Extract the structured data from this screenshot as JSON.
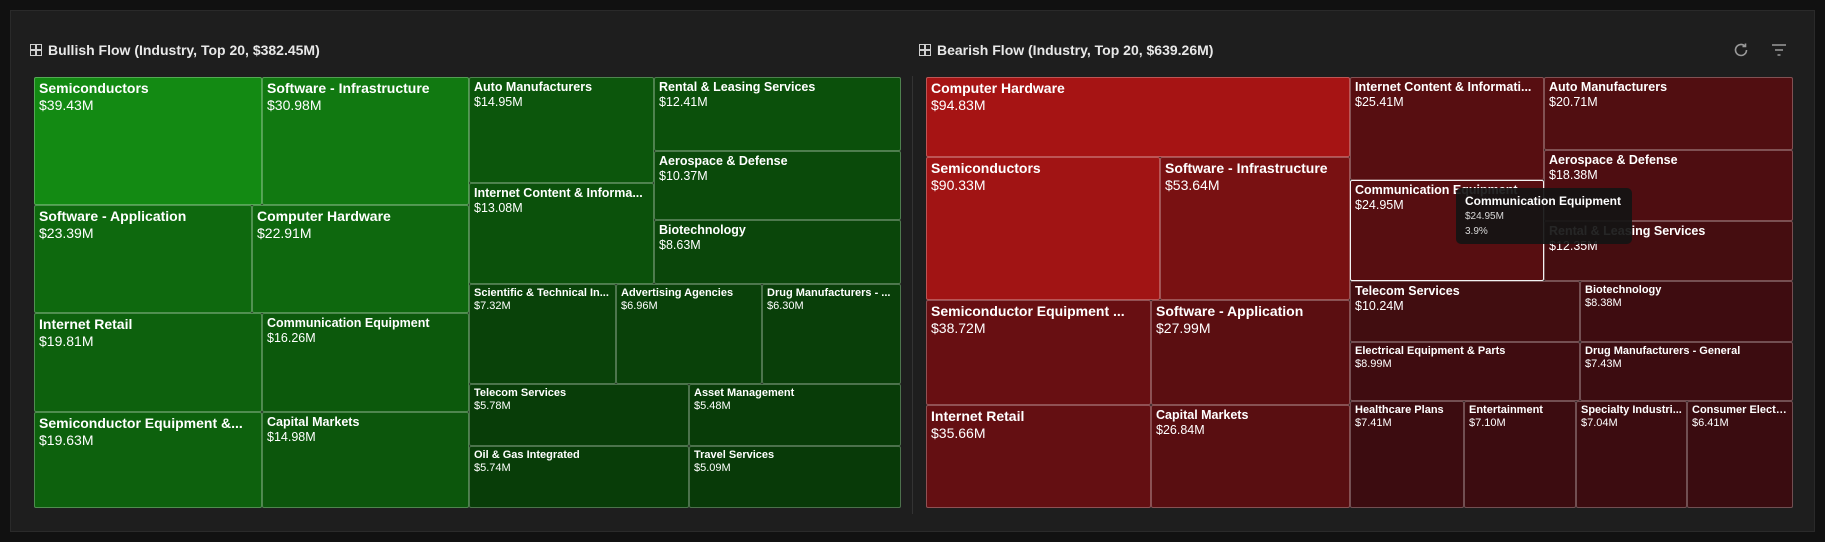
{
  "panels": {
    "bullish": {
      "title": "Bullish Flow (Industry, Top 20, $382.45M)"
    },
    "bearish": {
      "title": "Bearish Flow (Industry, Top 20, $639.26M)"
    }
  },
  "toolbar": {
    "refresh_icon": "refresh-icon",
    "filter_icon": "filter-icon"
  },
  "colors": {
    "bull_max": "#138a13",
    "bull_min": "#083a08",
    "bear_max": "#a61414",
    "bear_min": "#3a0c10"
  },
  "tooltip": {
    "title": "Communication Equipment",
    "value": "$24.95M",
    "pct": "3.9%"
  },
  "chart_data": [
    {
      "type": "treemap",
      "title": "Bullish Flow (Industry, Top 20, $382.45M)",
      "unit": "$M",
      "items": [
        {
          "name": "Semiconductors",
          "value": 39.43,
          "label": "$39.43M"
        },
        {
          "name": "Software - Infrastructure",
          "value": 30.98,
          "label": "$30.98M"
        },
        {
          "name": "Software - Application",
          "value": 23.39,
          "label": "$23.39M"
        },
        {
          "name": "Computer Hardware",
          "value": 22.91,
          "label": "$22.91M"
        },
        {
          "name": "Internet Retail",
          "value": 19.81,
          "label": "$19.81M"
        },
        {
          "name": "Semiconductor Equipment &...",
          "value": 19.63,
          "label": "$19.63M"
        },
        {
          "name": "Communication Equipment",
          "value": 16.26,
          "label": "$16.26M"
        },
        {
          "name": "Capital Markets",
          "value": 14.98,
          "label": "$14.98M"
        },
        {
          "name": "Auto Manufacturers",
          "value": 14.95,
          "label": "$14.95M"
        },
        {
          "name": "Internet Content & Informa...",
          "value": 13.08,
          "label": "$13.08M"
        },
        {
          "name": "Rental & Leasing Services",
          "value": 12.41,
          "label": "$12.41M"
        },
        {
          "name": "Aerospace & Defense",
          "value": 10.37,
          "label": "$10.37M"
        },
        {
          "name": "Biotechnology",
          "value": 8.63,
          "label": "$8.63M"
        },
        {
          "name": "Scientific & Technical In...",
          "value": 7.32,
          "label": "$7.32M"
        },
        {
          "name": "Advertising Agencies",
          "value": 6.96,
          "label": "$6.96M"
        },
        {
          "name": "Drug Manufacturers - ...",
          "value": 6.3,
          "label": "$6.30M"
        },
        {
          "name": "Telecom Services",
          "value": 5.78,
          "label": "$5.78M"
        },
        {
          "name": "Oil & Gas Integrated",
          "value": 5.74,
          "label": "$5.74M"
        },
        {
          "name": "Asset Management",
          "value": 5.48,
          "label": "$5.48M"
        },
        {
          "name": "Travel Services",
          "value": 5.09,
          "label": "$5.09M"
        }
      ]
    },
    {
      "type": "treemap",
      "title": "Bearish Flow (Industry, Top 20, $639.26M)",
      "unit": "$M",
      "items": [
        {
          "name": "Computer Hardware",
          "value": 94.83,
          "label": "$94.83M"
        },
        {
          "name": "Semiconductors",
          "value": 90.33,
          "label": "$90.33M"
        },
        {
          "name": "Software - Infrastructure",
          "value": 53.64,
          "label": "$53.64M"
        },
        {
          "name": "Semiconductor Equipment ...",
          "value": 38.72,
          "label": "$38.72M"
        },
        {
          "name": "Software - Application",
          "value": 27.99,
          "label": "$27.99M"
        },
        {
          "name": "Internet Retail",
          "value": 35.66,
          "label": "$35.66M"
        },
        {
          "name": "Capital Markets",
          "value": 26.84,
          "label": "$26.84M"
        },
        {
          "name": "Internet Content & Informati...",
          "value": 25.41,
          "label": "$25.41M"
        },
        {
          "name": "Auto Manufacturers",
          "value": 20.71,
          "label": "$20.71M"
        },
        {
          "name": "Aerospace & Defense",
          "value": 18.38,
          "label": "$18.38M"
        },
        {
          "name": "Communication Equipment",
          "value": 24.95,
          "label": "$24.95M"
        },
        {
          "name": "Rental & Leasing Services",
          "value": 12.35,
          "label": "$12.35M"
        },
        {
          "name": "Telecom Services",
          "value": 10.24,
          "label": "$10.24M"
        },
        {
          "name": "Biotechnology",
          "value": 8.38,
          "label": "$8.38M"
        },
        {
          "name": "Electrical Equipment & Parts",
          "value": 8.99,
          "label": "$8.99M"
        },
        {
          "name": "Drug Manufacturers - General",
          "value": 7.43,
          "label": "$7.43M"
        },
        {
          "name": "Healthcare Plans",
          "value": 7.41,
          "label": "$7.41M"
        },
        {
          "name": "Entertainment",
          "value": 7.1,
          "label": "$7.10M"
        },
        {
          "name": "Specialty Industri...",
          "value": 7.04,
          "label": "$7.04M"
        },
        {
          "name": "Consumer Electr...",
          "value": 6.41,
          "label": "$6.41M"
        }
      ]
    }
  ]
}
